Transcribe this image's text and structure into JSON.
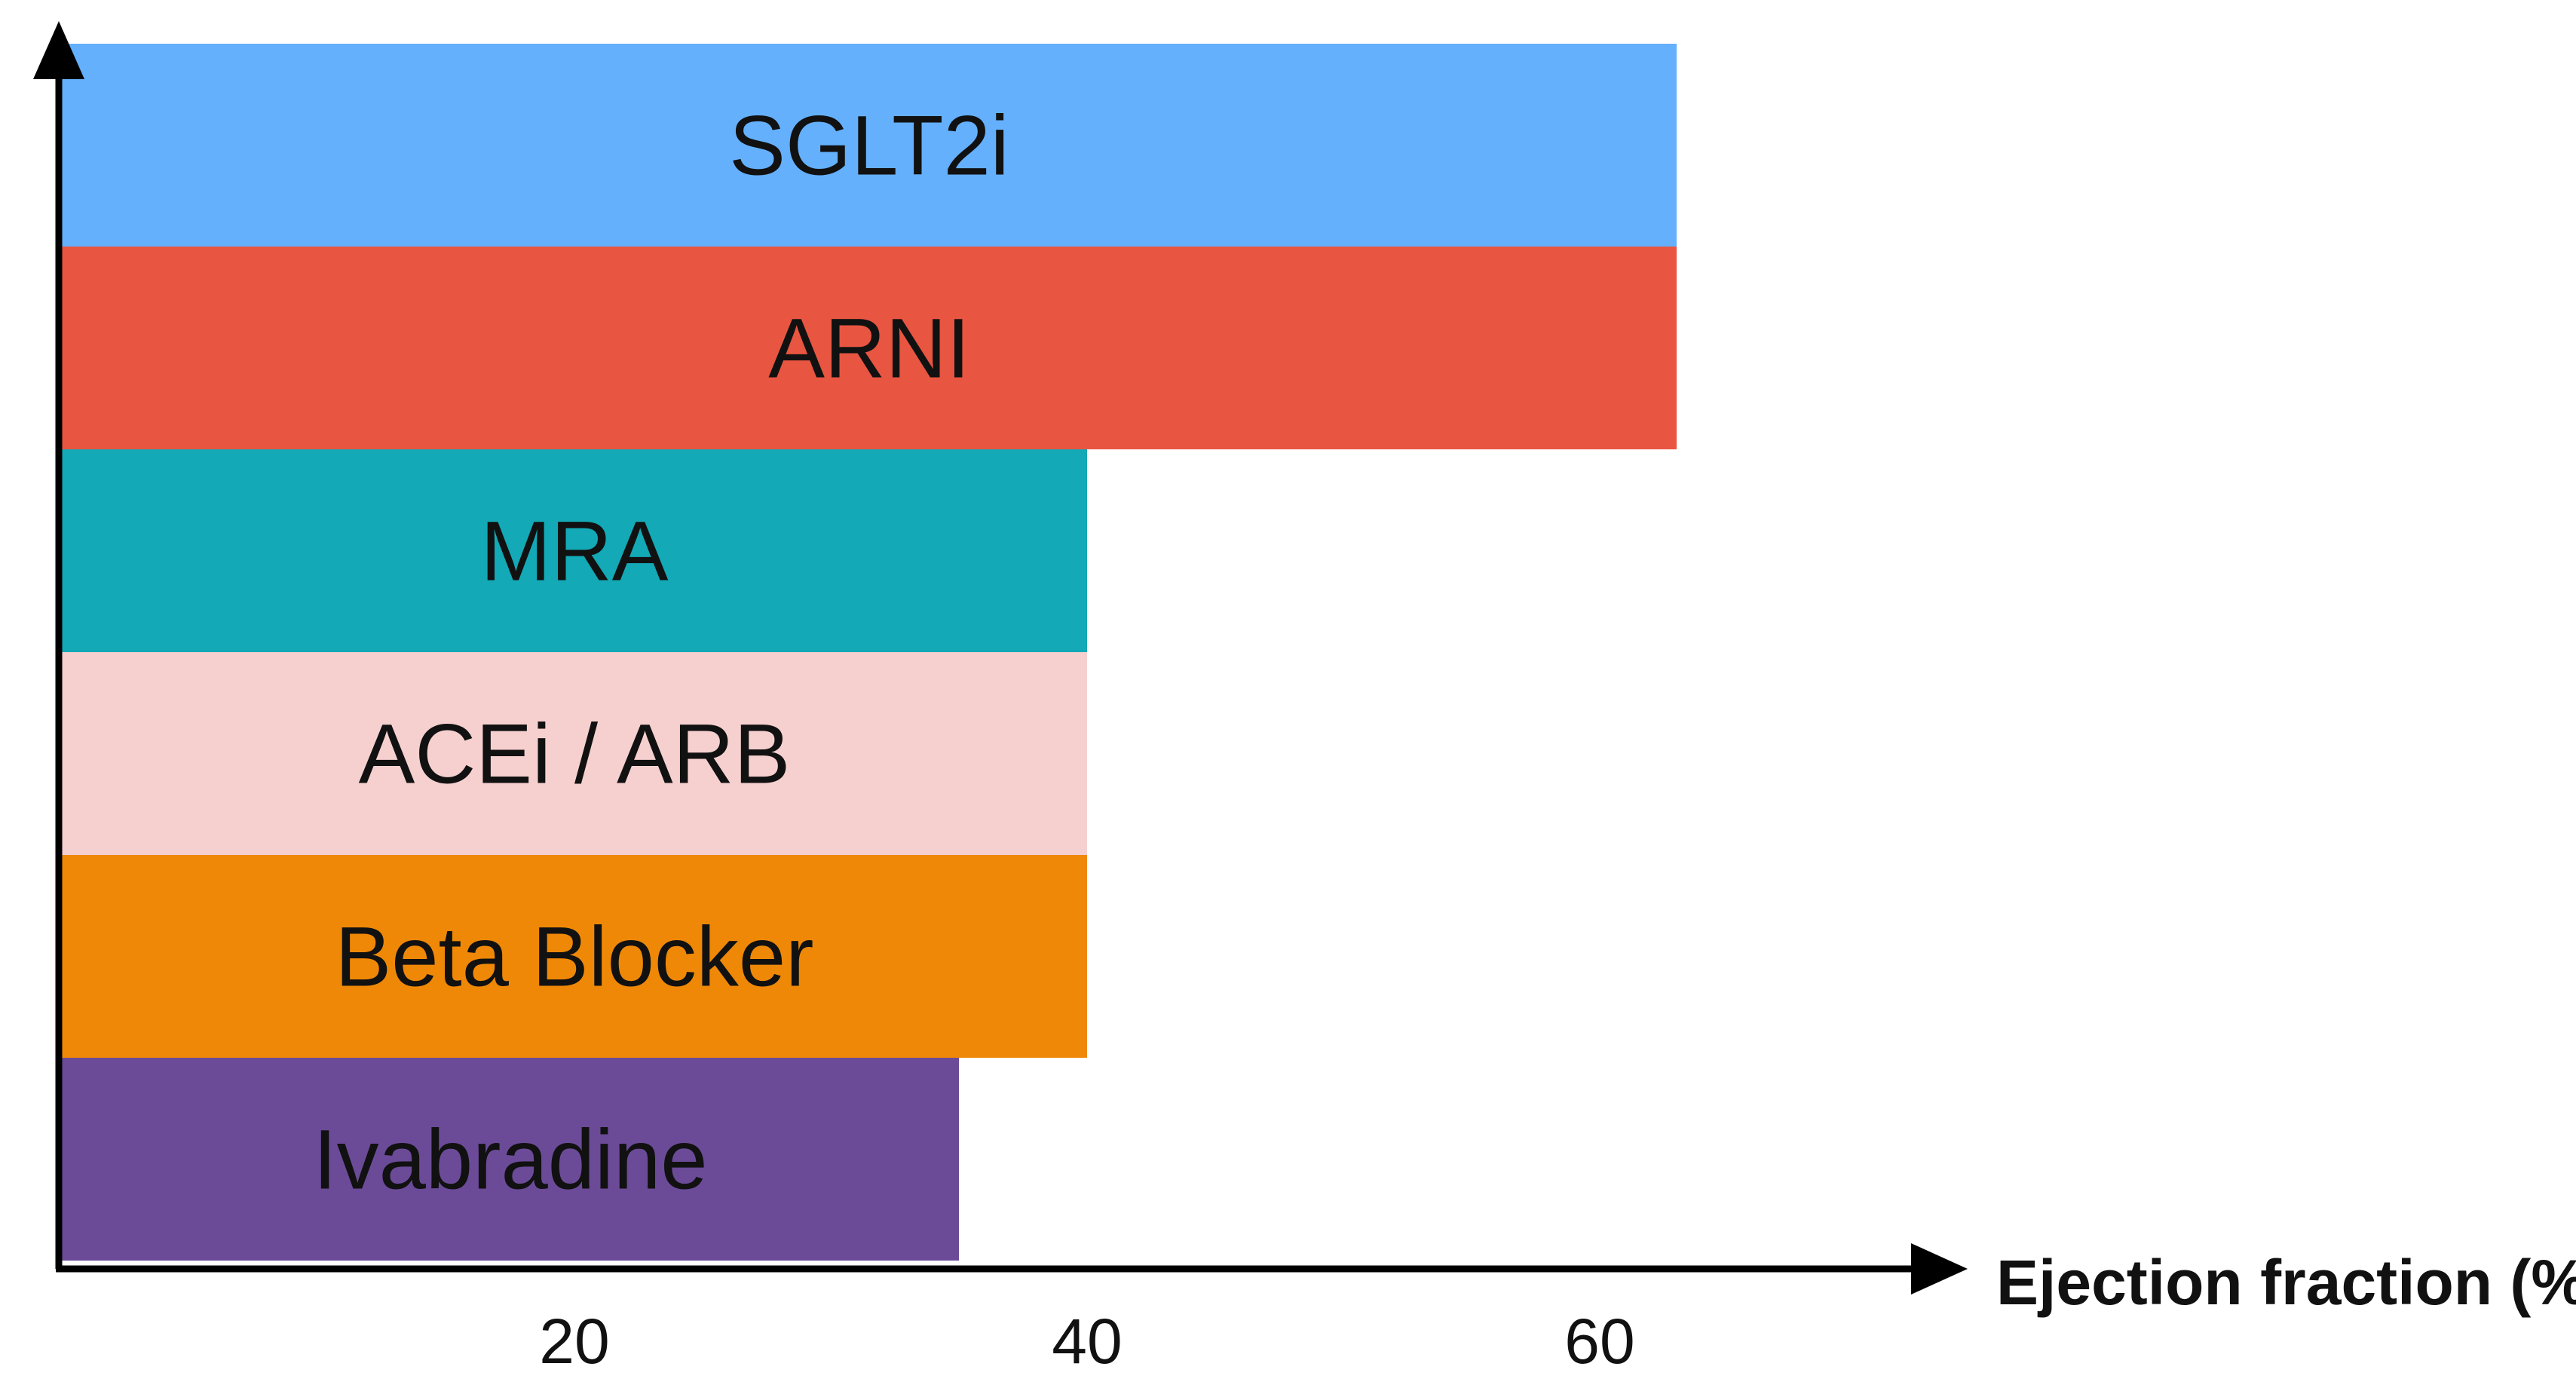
{
  "chart_data": {
    "type": "bar",
    "orientation": "horizontal",
    "categories": [
      "SGLT2i",
      "ARNI",
      "MRA",
      "ACEi / ARB",
      "Beta Blocker",
      "Ivabradine"
    ],
    "values": [
      63,
      63,
      40,
      40,
      40,
      35
    ],
    "colors": [
      "#64b0fd",
      "#e85541",
      "#13a9b6",
      "#f6d0cf",
      "#ef8807",
      "#6b4b98"
    ],
    "xlabel": "Ejection fraction (%)",
    "ylabel": "",
    "xticks": [
      20,
      40,
      60
    ],
    "xlim": [
      0,
      76
    ],
    "grid": false,
    "legend": "none",
    "axis_color": "#000000"
  }
}
